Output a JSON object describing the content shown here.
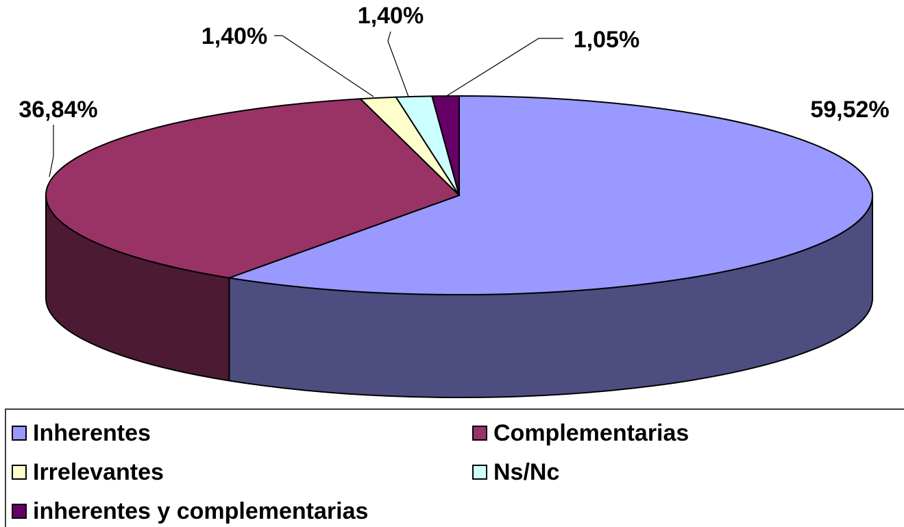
{
  "chart_data": {
    "type": "pie",
    "categories": [
      "Inherentes",
      "Complementarias",
      "Irrelevantes",
      "Ns/Nc",
      "inherentes y complementarias"
    ],
    "values": [
      59.52,
      36.84,
      1.4,
      1.4,
      1.05
    ],
    "value_labels": [
      "59,52%",
      "36,84%",
      "1,40%",
      "1,40%",
      "1,05%"
    ],
    "colors": [
      "#9999ff",
      "#993366",
      "#ffffcc",
      "#ccffff",
      "#660066"
    ],
    "legend": "bottom"
  }
}
